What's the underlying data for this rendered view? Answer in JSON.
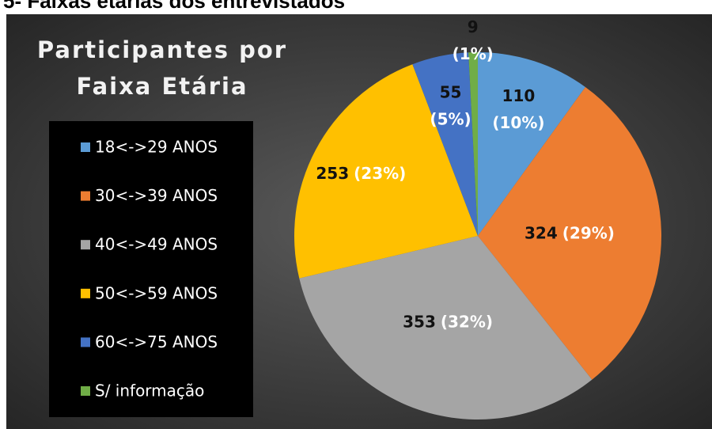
{
  "heading": "5- Faixas etárias dos entrevistados",
  "chart_data": {
    "type": "pie",
    "title": "Participantes por Faixa Etária",
    "categories": [
      "18<->29 ANOS",
      "30<->39 ANOS",
      "40<->49 ANOS",
      "50<->59 ANOS",
      "60<->75 ANOS",
      "S/ informação"
    ],
    "values": [
      110,
      324,
      353,
      253,
      55,
      9
    ],
    "percents": [
      10,
      29,
      32,
      23,
      5,
      1
    ],
    "percent_labels": [
      "(10%)",
      "(29%)",
      "(32%)",
      "(23%)",
      "(5%)",
      "(1%)"
    ],
    "colors": [
      "#5b9bd5",
      "#ed7d31",
      "#a5a5a5",
      "#ffc000",
      "#4472c4",
      "#70ad47"
    ],
    "legend": "left"
  }
}
